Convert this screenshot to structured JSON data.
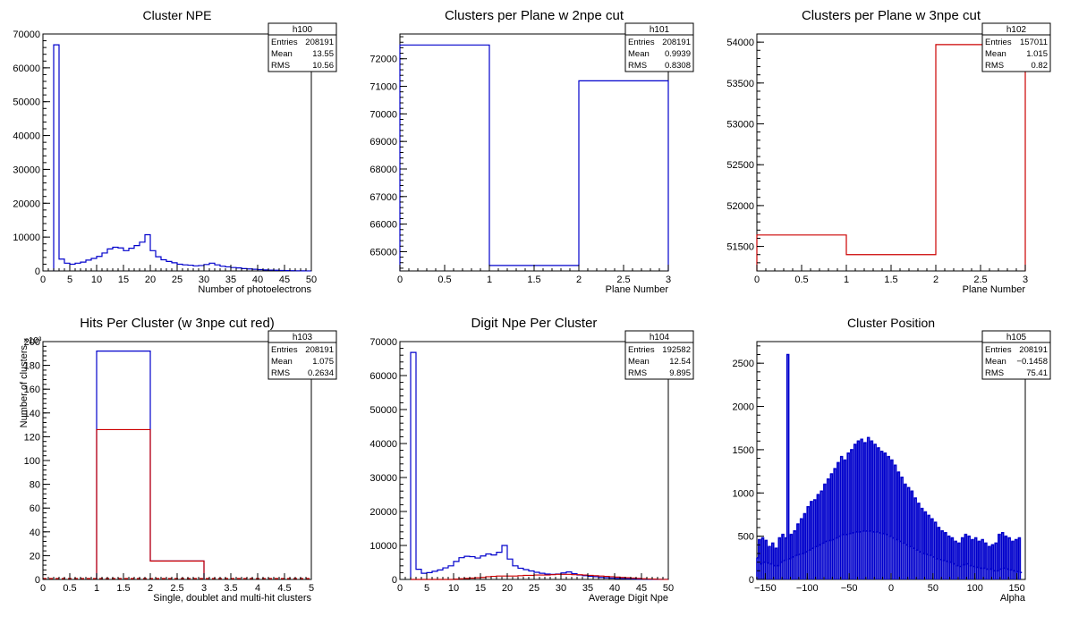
{
  "chart_data": [
    {
      "type": "bar",
      "title": "Cluster NPE",
      "xlabel": "Number of photoelectrons",
      "ylabel": "",
      "xlim": [
        0,
        50
      ],
      "ylim": [
        0,
        70000
      ],
      "xticks": [
        0,
        5,
        10,
        15,
        20,
        25,
        30,
        35,
        40,
        45,
        50
      ],
      "yticks": [
        0,
        10000,
        20000,
        30000,
        40000,
        50000,
        60000,
        70000
      ],
      "ytick_labels": [
        "0",
        "10000",
        "20000",
        "30000",
        "40000",
        "50000",
        "60000",
        "70000"
      ],
      "stats": {
        "name": "h100",
        "rows": [
          [
            "Entries",
            "208191"
          ],
          [
            "Mean",
            "13.55"
          ],
          [
            "RMS",
            "10.56"
          ]
        ]
      },
      "series": [
        {
          "color": "#0000cc",
          "x0": 2,
          "width": 1,
          "values": [
            66800,
            3500,
            2300,
            2000,
            2300,
            2600,
            3200,
            3700,
            4300,
            5300,
            6500,
            7000,
            6800,
            6000,
            6700,
            7500,
            8500,
            10700,
            6000,
            4200,
            3300,
            2800,
            2400,
            2000,
            1800,
            1700,
            1500,
            1600,
            1900,
            2300,
            1800,
            1400,
            1200,
            1000,
            900,
            700,
            600,
            500,
            400,
            300,
            250,
            200,
            150,
            100,
            80,
            50,
            30,
            20
          ]
        }
      ]
    },
    {
      "type": "bar",
      "title": "Clusters per Plane w 2npe cut",
      "xlabel": "Plane Number",
      "ylabel": "",
      "xlim": [
        0,
        3
      ],
      "ylim": [
        64300,
        72900
      ],
      "xticks": [
        0,
        0.5,
        1,
        1.5,
        2,
        2.5,
        3
      ],
      "yticks": [
        65000,
        66000,
        67000,
        68000,
        69000,
        70000,
        71000,
        72000
      ],
      "ytick_labels": [
        "65000",
        "66000",
        "67000",
        "68000",
        "69000",
        "70000",
        "71000",
        "72000"
      ],
      "stats": {
        "name": "h101",
        "rows": [
          [
            "Entries",
            "208191"
          ],
          [
            "Mean",
            "0.9939"
          ],
          [
            "RMS",
            "0.8308"
          ]
        ]
      },
      "series": [
        {
          "color": "#0000cc",
          "x0": 0,
          "width": 1,
          "values": [
            72500,
            64500,
            71200
          ]
        }
      ]
    },
    {
      "type": "bar",
      "title": "Clusters per Plane w 3npe cut",
      "xlabel": "Plane Number",
      "ylabel": "",
      "xlim": [
        0,
        3
      ],
      "ylim": [
        51200,
        54100
      ],
      "xticks": [
        0,
        0.5,
        1,
        1.5,
        2,
        2.5,
        3
      ],
      "yticks": [
        51500,
        52000,
        52500,
        53000,
        53500,
        54000
      ],
      "ytick_labels": [
        "51500",
        "52000",
        "52500",
        "53000",
        "53500",
        "54000"
      ],
      "stats": {
        "name": "h102",
        "rows": [
          [
            "Entries",
            "157011"
          ],
          [
            "Mean",
            "1.015"
          ],
          [
            "RMS",
            "0.82"
          ]
        ]
      },
      "series": [
        {
          "color": "#cc0000",
          "x0": 0,
          "width": 1,
          "values": [
            51640,
            51400,
            53970
          ]
        }
      ]
    },
    {
      "type": "bar",
      "title": "Hits Per Cluster (w 3npe cut red)",
      "xlabel": "Single, doublet and multi-hit clusters",
      "ylabel": "Number of clusters",
      "exponent_label": "×10³",
      "xlim": [
        0,
        5
      ],
      "ylim": [
        0,
        200000
      ],
      "xticks": [
        0,
        0.5,
        1,
        1.5,
        2,
        2.5,
        3,
        3.5,
        4,
        4.5,
        5
      ],
      "yticks": [
        0,
        20000,
        40000,
        60000,
        80000,
        100000,
        120000,
        140000,
        160000,
        180000,
        200000
      ],
      "ytick_labels": [
        "0",
        "20",
        "40",
        "60",
        "80",
        "100",
        "120",
        "140",
        "160",
        "180",
        "200"
      ],
      "stats": {
        "name": "h103",
        "rows": [
          [
            "Entries",
            "208191"
          ],
          [
            "Mean",
            "1.075"
          ],
          [
            "RMS",
            "0.2634"
          ]
        ]
      },
      "series": [
        {
          "color": "#0000cc",
          "x0": 1,
          "width": 1,
          "values": [
            192000,
            15500
          ]
        },
        {
          "color": "#cc0000",
          "x0": 1,
          "width": 1,
          "values": [
            126000,
            15500
          ]
        }
      ]
    },
    {
      "type": "bar",
      "title": "Digit Npe Per Cluster",
      "xlabel": "Average Digit Npe",
      "ylabel": "",
      "xlim": [
        0,
        50
      ],
      "ylim": [
        0,
        70000
      ],
      "xticks": [
        0,
        5,
        10,
        15,
        20,
        25,
        30,
        35,
        40,
        45,
        50
      ],
      "yticks": [
        0,
        10000,
        20000,
        30000,
        40000,
        50000,
        60000,
        70000
      ],
      "ytick_labels": [
        "0",
        "10000",
        "20000",
        "30000",
        "40000",
        "50000",
        "60000",
        "70000"
      ],
      "stats": {
        "name": "h104",
        "rows": [
          [
            "Entries",
            "192582"
          ],
          [
            "Mean",
            "12.54"
          ],
          [
            "RMS",
            "9.895"
          ]
        ]
      },
      "series": [
        {
          "color": "#0000cc",
          "x0": 2,
          "width": 1,
          "values": [
            66800,
            3000,
            1800,
            2000,
            2400,
            2800,
            3400,
            4000,
            5300,
            6400,
            6800,
            6700,
            6300,
            6900,
            7500,
            7200,
            8000,
            10000,
            6000,
            4000,
            3300,
            2900,
            2500,
            2100,
            1800,
            1600,
            1500,
            1600,
            1900,
            2200,
            1700,
            1300,
            1100,
            900,
            800,
            600,
            500,
            400,
            300,
            250,
            200,
            150,
            100,
            80,
            50,
            30,
            20,
            10
          ]
        },
        {
          "color": "#cc0000",
          "x0": 2,
          "width": 1,
          "values": [
            0,
            0,
            0,
            0,
            0,
            0,
            0,
            0,
            100,
            200,
            300,
            400,
            500,
            600,
            800,
            900,
            1000,
            1000,
            1000,
            1000,
            1100,
            1200,
            1200,
            1300,
            1300,
            1300,
            1400,
            1500,
            1500,
            1500,
            1400,
            1400,
            1300,
            1200,
            1100,
            1000,
            900,
            800,
            700,
            600,
            500,
            400,
            300,
            200,
            150,
            100,
            50,
            20
          ]
        }
      ]
    },
    {
      "type": "bar",
      "title": "Cluster Position",
      "xlabel": "Alpha",
      "ylabel": "",
      "xlim": [
        -160,
        160
      ],
      "ylim": [
        0,
        2750
      ],
      "xticks": [
        -150,
        -100,
        -50,
        0,
        50,
        100,
        150
      ],
      "xtick_labels": [
        "−150",
        "−100",
        "−50",
        "0",
        "50",
        "100",
        "150"
      ],
      "yticks": [
        0,
        500,
        1000,
        1500,
        2000,
        2500
      ],
      "ytick_labels": [
        "0",
        "500",
        "1000",
        "1500",
        "2000",
        "2500"
      ],
      "stats": {
        "name": "h105",
        "rows": [
          [
            "Entries",
            "208191"
          ],
          [
            "Mean",
            "−0.1458"
          ],
          [
            "RMS",
            "75.41"
          ]
        ]
      },
      "series": [
        {
          "color": "#0000cc",
          "x0": -160,
          "width": 2,
          "comb": true,
          "values": [
            250,
            460,
            180,
            480,
            200,
            450,
            190,
            380,
            180,
            420,
            160,
            360,
            160,
            480,
            200,
            520,
            220,
            480,
            2600,
            240,
            520,
            260,
            560,
            280,
            640,
            290,
            700,
            300,
            760,
            320,
            840,
            340,
            900,
            360,
            920,
            380,
            980,
            400,
            1020,
            420,
            1100,
            440,
            1160,
            450,
            1220,
            460,
            1280,
            480,
            1350,
            500,
            1420,
            520,
            1380,
            520,
            1460,
            530,
            1500,
            540,
            1560,
            550,
            1600,
            550,
            1620,
            560,
            1580,
            560,
            1640,
            560,
            1600,
            550,
            1560,
            550,
            1520,
            540,
            1480,
            530,
            1460,
            520,
            1420,
            500,
            1380,
            480,
            1320,
            460,
            1240,
            440,
            1180,
            420,
            1100,
            400,
            1060,
            380,
            1020,
            360,
            940,
            340,
            880,
            320,
            820,
            300,
            780,
            290,
            740,
            280,
            700,
            260,
            660,
            240,
            600,
            230,
            560,
            220,
            540,
            210,
            500,
            200,
            480,
            180,
            440,
            160,
            420,
            150,
            480,
            170,
            520,
            180,
            500,
            160,
            460,
            150,
            480,
            140,
            440,
            130,
            460,
            130,
            420,
            120,
            380,
            120,
            400,
            100,
            420,
            100,
            520,
            120,
            540,
            130,
            500,
            120,
            480,
            110,
            440,
            100,
            460,
            90,
            480,
            80
          ]
        }
      ]
    }
  ]
}
